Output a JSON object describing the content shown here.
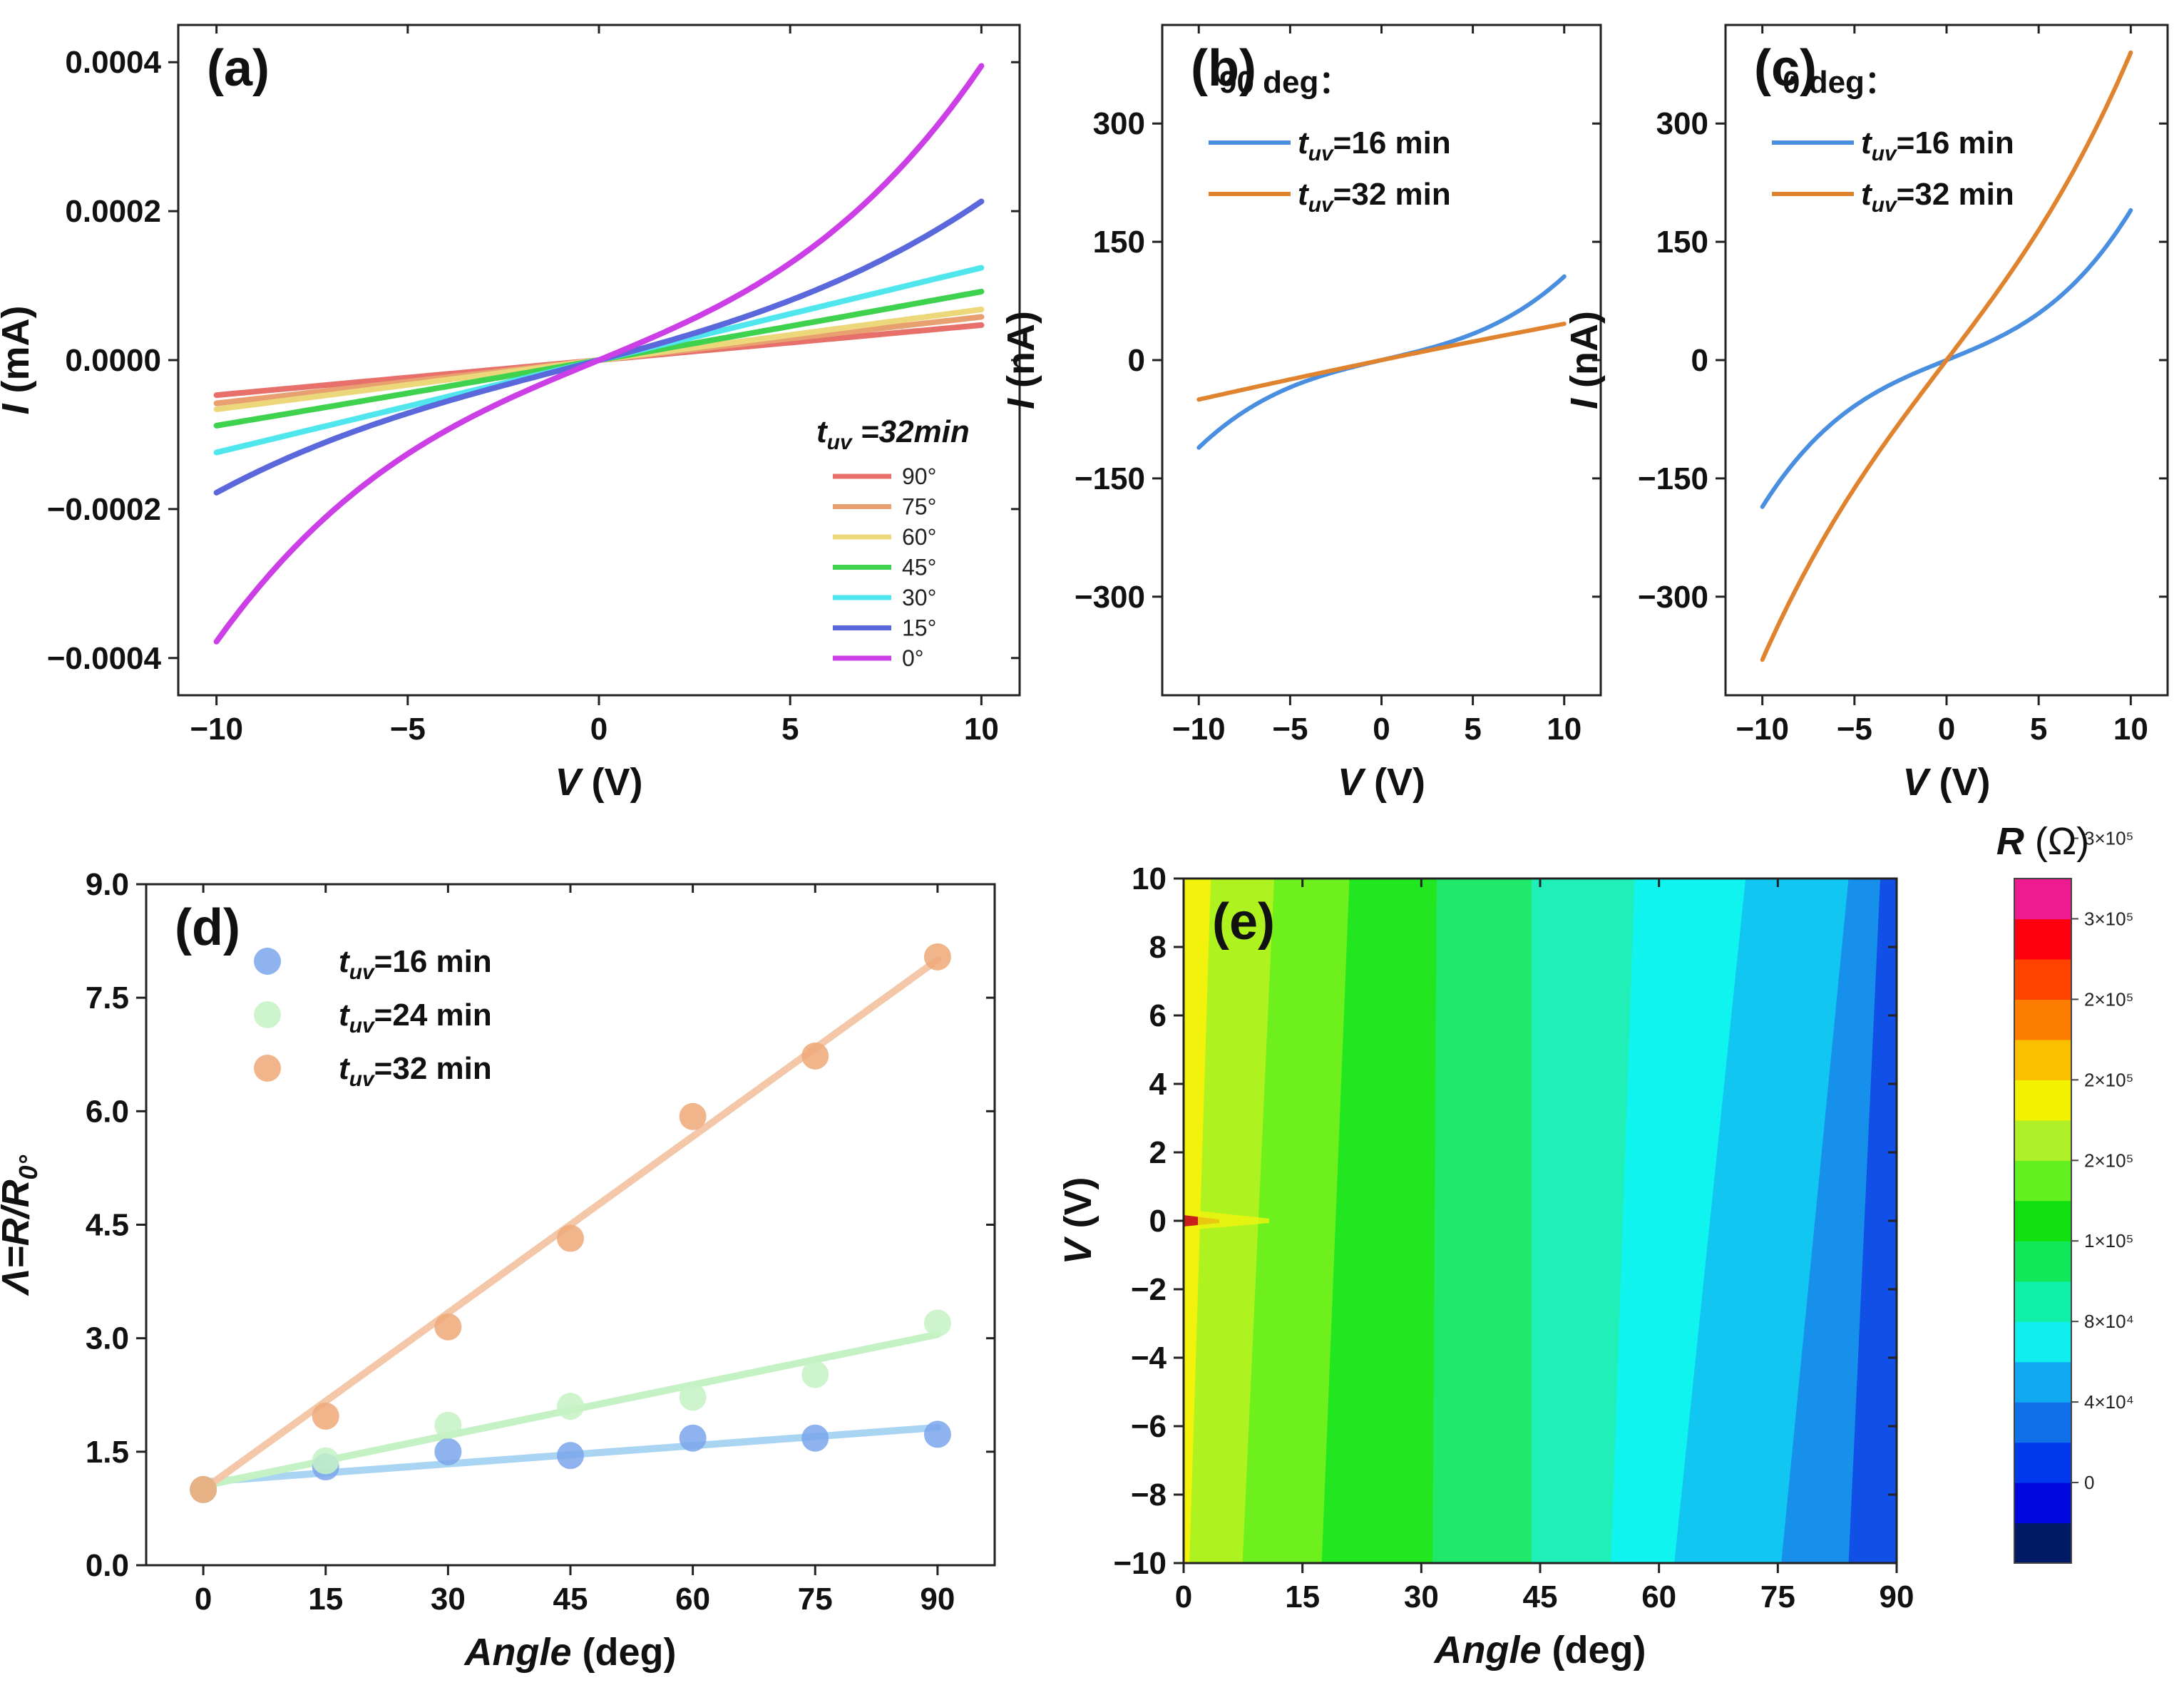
{
  "panels": {
    "a": {
      "label": "(a)",
      "type": "line",
      "x_label": {
        "italic": "V",
        "rest": " (V)"
      },
      "y_label": {
        "italic": "I",
        "rest": " (mA)"
      },
      "xlim": [
        -11,
        11
      ],
      "ylim": [
        -0.00045,
        0.00045
      ],
      "x_ticks": [
        -10,
        -5,
        0,
        5,
        10
      ],
      "x_tick_labels": [
        "−10",
        "−5",
        "0",
        "5",
        "10"
      ],
      "y_ticks": [
        -0.0004,
        -0.0002,
        0,
        0.0002,
        0.0004
      ],
      "y_tick_labels": [
        "−0.0004",
        "−0.0002",
        "0.0000",
        "0.0002",
        "0.0004"
      ],
      "legend_title": {
        "t": "t",
        "sub": "uv",
        "rest": " =32min"
      },
      "series": [
        {
          "name": "90°",
          "color": "#e8706b",
          "pos_end": 4.7e-05,
          "neg_end": -4.7e-05,
          "curv": 0.0
        },
        {
          "name": "75°",
          "color": "#e9a070",
          "pos_end": 5.8e-05,
          "neg_end": -5.8e-05,
          "curv": 0.0
        },
        {
          "name": "60°",
          "color": "#ecd87a",
          "pos_end": 6.8e-05,
          "neg_end": -6.6e-05,
          "curv": 0.0
        },
        {
          "name": "45°",
          "color": "#3fd24f",
          "pos_end": 9.2e-05,
          "neg_end": -8.8e-05,
          "curv": 0.0
        },
        {
          "name": "30°",
          "color": "#4fe6ee",
          "pos_end": 0.000124,
          "neg_end": -0.000124,
          "curv": 0.0
        },
        {
          "name": "15°",
          "color": "#5a68dc",
          "pos_end": 0.000213,
          "neg_end": -0.000178,
          "curv": 0.3
        },
        {
          "name": "0°",
          "color": "#cc3fe6",
          "pos_end": 0.000395,
          "neg_end": -0.000378,
          "curv": 0.45
        }
      ]
    },
    "b": {
      "label": "(b)",
      "type": "line",
      "x_label": {
        "italic": "V",
        "rest": " (V)"
      },
      "y_label": {
        "italic": "I",
        "rest": " (nA)"
      },
      "xlim": [
        -12,
        12
      ],
      "ylim": [
        -425,
        425
      ],
      "x_ticks": [
        -10,
        -5,
        0,
        5,
        10
      ],
      "x_tick_labels": [
        "−10",
        "−5",
        "0",
        "5",
        "10"
      ],
      "y_ticks": [
        -300,
        -150,
        0,
        150,
        300
      ],
      "y_tick_labels": [
        "−300",
        "−150",
        "0",
        "150",
        "300"
      ],
      "legend_title": "90 deg：",
      "series": [
        {
          "name_t": "t",
          "name_sub": "uv",
          "name_rest": "=16 min",
          "color": "#4a8ee0",
          "pos_end": 106,
          "neg_end": -111,
          "curv": 0.5
        },
        {
          "name_t": "t",
          "name_sub": "uv",
          "name_rest": "=32 min",
          "color": "#e0832e",
          "pos_end": 46,
          "neg_end": -50,
          "curv": 0.0
        }
      ]
    },
    "c": {
      "label": "(c)",
      "type": "line",
      "x_label": {
        "italic": "V",
        "rest": " (V)"
      },
      "y_label": {
        "italic": "I",
        "rest": " (nA)"
      },
      "xlim": [
        -12,
        12
      ],
      "ylim": [
        -425,
        425
      ],
      "x_ticks": [
        -10,
        -5,
        0,
        5,
        10
      ],
      "x_tick_labels": [
        "−10",
        "−5",
        "0",
        "5",
        "10"
      ],
      "y_ticks": [
        -300,
        -150,
        0,
        150,
        300
      ],
      "y_tick_labels": [
        "−300",
        "−150",
        "0",
        "150",
        "300"
      ],
      "legend_title": "0 deg：",
      "series": [
        {
          "name_t": "t",
          "name_sub": "uv",
          "name_rest": "=16 min",
          "color": "#4a8ee0",
          "pos_end": 190,
          "neg_end": -186,
          "curv": 0.5
        },
        {
          "name_t": "t",
          "name_sub": "uv",
          "name_rest": "=32 min",
          "color": "#e0832e",
          "pos_end": 390,
          "neg_end": -380,
          "curv": 0.2
        }
      ]
    },
    "d": {
      "label": "(d)",
      "type": "scatter",
      "x_label": {
        "italic": "Angle",
        "rest": " (deg)"
      },
      "y_label": {
        "italic": "Λ=R/R",
        "sub": "0°",
        "rest": ""
      },
      "xlim": [
        -7,
        97
      ],
      "ylim": [
        0,
        9
      ],
      "x_ticks": [
        0,
        15,
        30,
        45,
        60,
        75,
        90
      ],
      "x_tick_labels": [
        "0",
        "15",
        "30",
        "45",
        "60",
        "75",
        "90"
      ],
      "y_ticks": [
        0,
        1.5,
        3,
        4.5,
        6,
        7.5,
        9
      ],
      "y_tick_labels": [
        "0.0",
        "1.5",
        "3.0",
        "4.5",
        "6.0",
        "7.5",
        "9.0"
      ],
      "x": [
        0,
        15,
        30,
        45,
        60,
        75,
        90
      ],
      "series": [
        {
          "name_t": "t",
          "name_sub": "uv",
          "name_rest": "=16 min",
          "color": "#7aa6ec",
          "line_color": "#a9d4f2",
          "values": [
            1.0,
            1.3,
            1.5,
            1.45,
            1.68,
            1.68,
            1.73
          ],
          "fit": [
            1.1,
            1.82
          ]
        },
        {
          "name_t": "t",
          "name_sub": "uv",
          "name_rest": "=24 min",
          "color": "#c5f2c5",
          "line_color": "#c5f2c5",
          "values": [
            1.0,
            1.38,
            1.85,
            2.1,
            2.22,
            2.52,
            3.2
          ],
          "fit": [
            1.05,
            3.05
          ]
        },
        {
          "name_t": "t",
          "name_sub": "uv",
          "name_rest": "=32 min",
          "color": "#eea878",
          "line_color": "#f3c7a7",
          "values": [
            1.0,
            1.97,
            3.15,
            4.32,
            5.93,
            6.73,
            8.04
          ],
          "fit": [
            1.0,
            8.0
          ]
        }
      ]
    },
    "e": {
      "label": "(e)",
      "type": "heatmap",
      "x_label": {
        "italic": "Angle",
        "rest": " (deg)"
      },
      "y_label": {
        "italic": "V",
        "rest": " (V)"
      },
      "xlim": [
        0,
        90
      ],
      "ylim": [
        -10,
        10
      ],
      "x_ticks": [
        0,
        15,
        30,
        45,
        60,
        75,
        90
      ],
      "x_tick_labels": [
        "0",
        "15",
        "30",
        "45",
        "60",
        "75",
        "90"
      ],
      "y_ticks": [
        -10,
        -8,
        -6,
        -4,
        -2,
        0,
        2,
        4,
        6,
        8,
        10
      ],
      "y_tick_labels": [
        "−10",
        "−8",
        "−6",
        "−4",
        "−2",
        "0",
        "2",
        "4",
        "6",
        "8",
        "10"
      ],
      "band_colors": [
        "#f3f20c",
        "#aef220",
        "#6ef01c",
        "#22e620",
        "#20e86a",
        "#20f0b8",
        "#10f4f0",
        "#12c6f2",
        "#1690ea",
        "#1050e6"
      ],
      "band_edges_top": [
        0,
        3.5,
        11.5,
        21,
        32,
        44,
        57,
        71,
        84,
        88,
        90
      ],
      "band_edges_bottom": [
        0,
        0.8,
        7.5,
        17.5,
        31.5,
        44,
        54,
        62,
        75.5,
        84,
        90
      ],
      "colorbar": {
        "title": {
          "italic": "R",
          "rest": " (Ω)"
        },
        "colors": [
          "#001a66",
          "#0008de",
          "#0038ee",
          "#1070ea",
          "#10a8f0",
          "#10eef0",
          "#10f0a8",
          "#10e85a",
          "#10e010",
          "#62f020",
          "#b0f028",
          "#f2f200",
          "#fbc000",
          "#fc7d00",
          "#ff4200",
          "#ff0010",
          "#ee1a90"
        ],
        "labels": [
          "0",
          "4×10⁴",
          "8×10⁴",
          "1×10⁵",
          "2×10⁵",
          "2×10⁵",
          "2×10⁵",
          "3×10⁵",
          "3×10⁵"
        ]
      }
    }
  }
}
